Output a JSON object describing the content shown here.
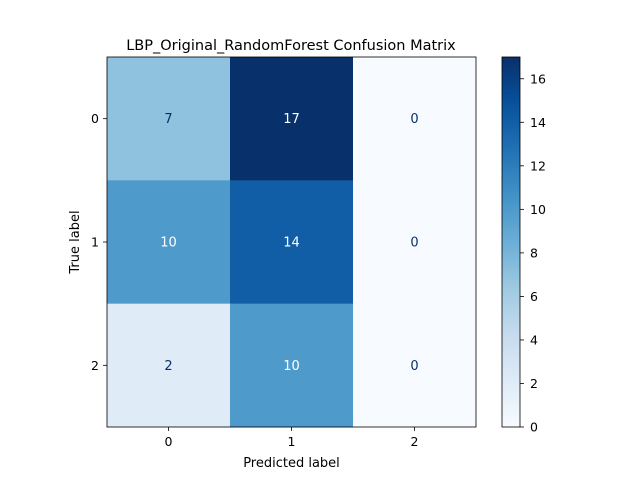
{
  "chart_data": {
    "type": "heatmap",
    "title": "LBP_Original_RandomForest Confusion Matrix",
    "xlabel": "Predicted label",
    "ylabel": "True label",
    "x_categories": [
      "0",
      "1",
      "2"
    ],
    "y_categories": [
      "0",
      "1",
      "2"
    ],
    "values": [
      [
        7,
        17,
        0
      ],
      [
        10,
        14,
        0
      ],
      [
        2,
        10,
        0
      ]
    ],
    "colormap": "Blues",
    "color_range": [
      0,
      17
    ],
    "colorbar_ticks": [
      "0",
      "2",
      "4",
      "6",
      "8",
      "10",
      "12",
      "14",
      "16"
    ],
    "grid": false
  }
}
